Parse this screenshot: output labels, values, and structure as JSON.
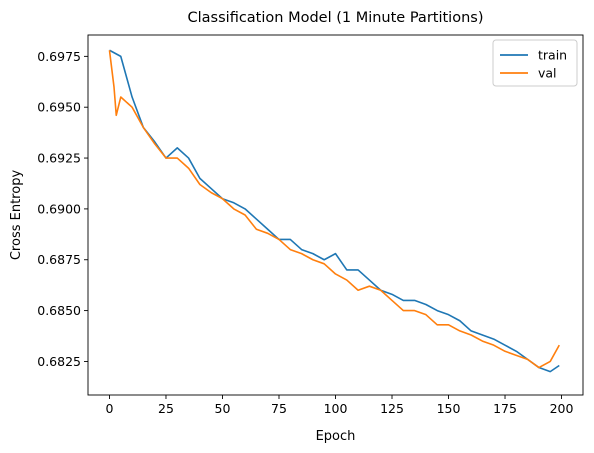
{
  "chart_data": {
    "type": "line",
    "title": "Classification Model (1 Minute Partitions)",
    "xlabel": "Epoch",
    "ylabel": "Cross Entropy",
    "xlim": [
      -9.5,
      209.5
    ],
    "ylim": [
      0.68085,
      0.69855
    ],
    "xticks": [
      0,
      25,
      50,
      75,
      100,
      125,
      150,
      175,
      200
    ],
    "yticks": [
      0.6825,
      0.685,
      0.6875,
      0.69,
      0.6925,
      0.695,
      0.6975
    ],
    "ytick_labels": [
      "0.6825",
      "0.6850",
      "0.6875",
      "0.6900",
      "0.6925",
      "0.6950",
      "0.6975"
    ],
    "legend_position": "top-right",
    "grid": false,
    "series": [
      {
        "name": "train",
        "color": "#1f77b4",
        "x": [
          0,
          5,
          10,
          15,
          20,
          25,
          30,
          35,
          40,
          45,
          50,
          55,
          60,
          65,
          70,
          75,
          80,
          85,
          90,
          95,
          100,
          105,
          110,
          115,
          120,
          125,
          130,
          135,
          140,
          145,
          150,
          155,
          160,
          165,
          170,
          175,
          180,
          185,
          190,
          195,
          199
        ],
        "y": [
          0.6978,
          0.6975,
          0.6955,
          0.694,
          0.6933,
          0.6925,
          0.693,
          0.6925,
          0.6915,
          0.691,
          0.6905,
          0.6903,
          0.69,
          0.6895,
          0.689,
          0.6885,
          0.6885,
          0.688,
          0.6878,
          0.6875,
          0.6878,
          0.687,
          0.687,
          0.6865,
          0.686,
          0.6858,
          0.6855,
          0.6855,
          0.6853,
          0.685,
          0.6848,
          0.6845,
          0.684,
          0.6838,
          0.6836,
          0.6833,
          0.683,
          0.6826,
          0.6822,
          0.682,
          0.6823
        ]
      },
      {
        "name": "val",
        "color": "#ff7f0e",
        "x": [
          0,
          2,
          3,
          5,
          10,
          15,
          20,
          25,
          30,
          35,
          40,
          45,
          50,
          55,
          60,
          65,
          70,
          75,
          80,
          85,
          90,
          95,
          100,
          105,
          110,
          115,
          120,
          125,
          130,
          135,
          140,
          145,
          150,
          155,
          160,
          165,
          170,
          175,
          180,
          185,
          190,
          195,
          199
        ],
        "y": [
          0.6978,
          0.696,
          0.6946,
          0.6955,
          0.695,
          0.694,
          0.6932,
          0.6925,
          0.6925,
          0.692,
          0.6912,
          0.6908,
          0.6905,
          0.69,
          0.6897,
          0.689,
          0.6888,
          0.6885,
          0.688,
          0.6878,
          0.6875,
          0.6873,
          0.6868,
          0.6865,
          0.686,
          0.6862,
          0.686,
          0.6855,
          0.685,
          0.685,
          0.6848,
          0.6843,
          0.6843,
          0.684,
          0.6838,
          0.6835,
          0.6833,
          0.683,
          0.6828,
          0.6826,
          0.6822,
          0.6825,
          0.6833
        ]
      }
    ]
  }
}
